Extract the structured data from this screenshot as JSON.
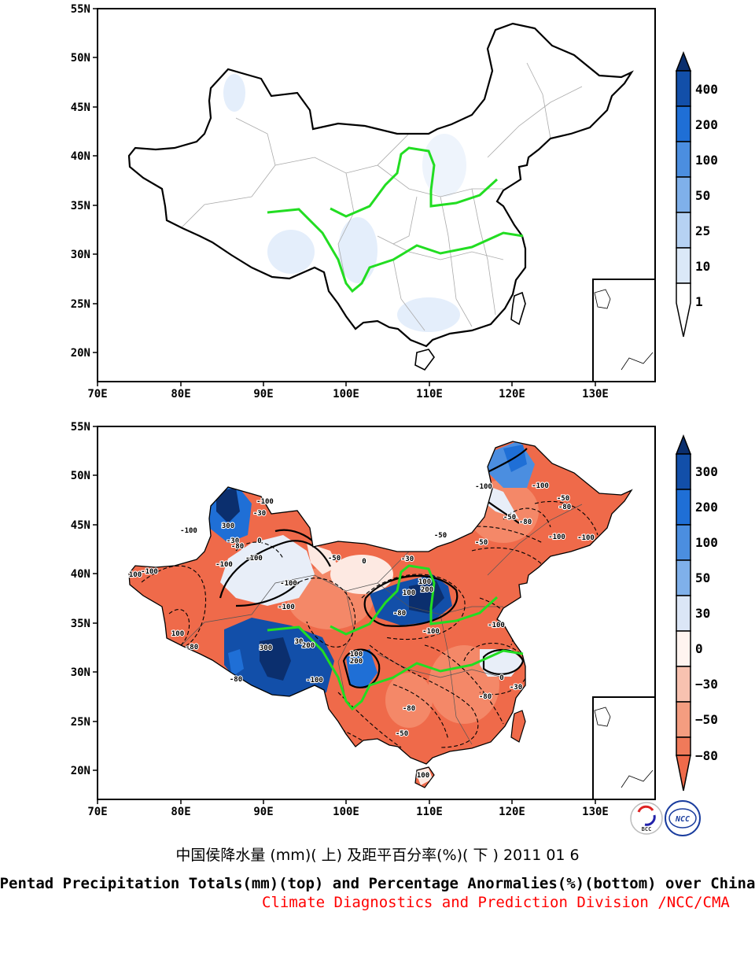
{
  "top_panel": {
    "lat_labels": [
      "55N",
      "50N",
      "45N",
      "40N",
      "35N",
      "30N",
      "25N",
      "20N"
    ],
    "lon_labels": [
      "70E",
      "80E",
      "90E",
      "100E",
      "110E",
      "120E",
      "130E"
    ],
    "colorbar": {
      "labels": [
        "400",
        "200",
        "100",
        "50",
        "25",
        "10",
        "1"
      ],
      "colors": [
        "#0b2f6e",
        "#124fa9",
        "#1f6fd6",
        "#4b8ee0",
        "#7fb0ea",
        "#b6d2f3",
        "#ffffff"
      ]
    }
  },
  "bottom_panel": {
    "lat_labels": [
      "55N",
      "50N",
      "45N",
      "40N",
      "35N",
      "30N",
      "25N",
      "20N"
    ],
    "lon_labels": [
      "70E",
      "80E",
      "90E",
      "100E",
      "110E",
      "120E",
      "130E"
    ],
    "colorbar": {
      "labels": [
        "300",
        "200",
        "100",
        "50",
        "30",
        "0",
        "−30",
        "−50",
        "−80"
      ],
      "colors": [
        "#0b2f6e",
        "#124fa9",
        "#1f6fd6",
        "#4b8ee0",
        "#a8c7ee",
        "#e8eef8",
        "#fde9e2",
        "#f7b49f",
        "#f48868",
        "#ef6a4a"
      ]
    },
    "contour_labels": [
      "300",
      "-100",
      "-30",
      "-100",
      "-30",
      "0",
      "-80",
      "-100",
      "-50",
      "0",
      "-100",
      "100",
      "200",
      "100",
      "300",
      "30",
      "200",
      "100",
      "200",
      "-80",
      "-100",
      "-100",
      "-100",
      "-50",
      "-80",
      "-80",
      "-100",
      "-100",
      "-50",
      "-30",
      "-100",
      "-80",
      "-100",
      "0",
      "-30",
      "-80",
      "-50",
      "100",
      "-80",
      "-100",
      "-100",
      "100",
      "100",
      "-100",
      "-80",
      "-50",
      "-50"
    ]
  },
  "logos": {
    "bcc": "BCC",
    "ncc": "NCC"
  },
  "caption_cn": "中国侯降水量 (mm)( 上) 及距平百分率(%)( 下 ) 2011 01 6",
  "caption_en": "Pentad Precipitation Totals(mm)(top) and Percentage Anormalies(%)(bottom) over China",
  "caption_org": "Climate Diagnostics and Prediction Division /NCC/CMA",
  "colors": {
    "river": "#22dd22",
    "border": "#000000",
    "province": "#aaaaaa"
  }
}
